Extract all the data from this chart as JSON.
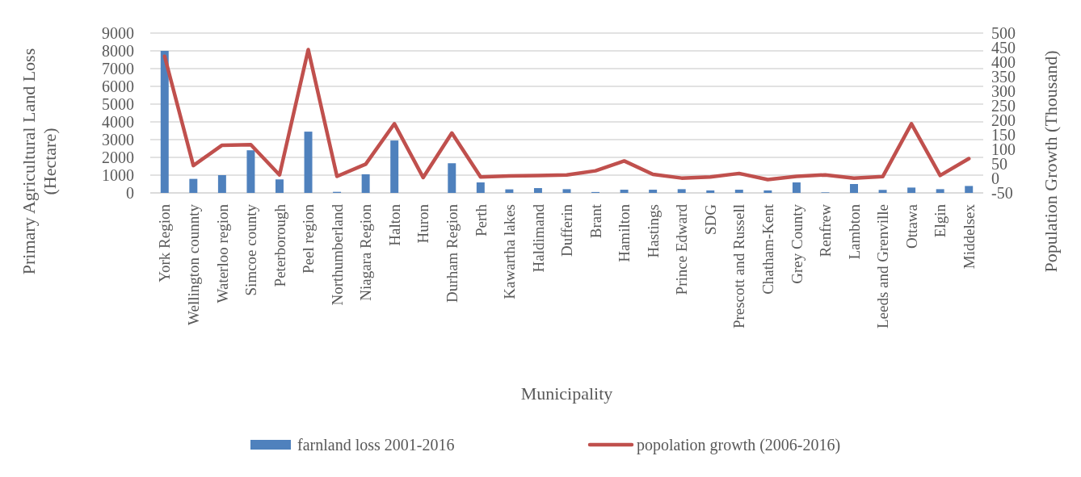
{
  "chart_data": {
    "type": "bar",
    "xlabel": "Municipality",
    "ylabel": "Primary Agricultural Land Loss (Hectare)",
    "y2label": "Population Growth (Thousand)",
    "categories": [
      "York Region",
      "Wellington counnty",
      "Waterloo region",
      "Simcoe county",
      "Peterborough",
      "Peel region",
      "Northumberland",
      "Niagara Region",
      "Halton",
      "Huron",
      "Durham Region",
      "Perth",
      "Kawartha lakes",
      "Haldimand",
      "Dufferin",
      "Brant",
      "Hamilton",
      "Hastings",
      "Prince Edward",
      "SDG",
      "Prescott and Russell",
      "Chatham-Kent",
      "Grey County",
      "Renfrew",
      "Lambton",
      "Leeds and Grenville",
      "Ottawa",
      "Elgin",
      "Middelsex"
    ],
    "series": [
      {
        "name": "farnland loss 2001-2016",
        "color": "#4f81bd",
        "values": [
          8000,
          790,
          1000,
          2400,
          760,
          3450,
          60,
          1050,
          2950,
          0,
          1670,
          590,
          200,
          270,
          210,
          50,
          180,
          180,
          210,
          140,
          180,
          140,
          590,
          30,
          500,
          170,
          300,
          210,
          390
        ]
      },
      {
        "name": "popolation growth (2006-2016)",
        "type": "line",
        "axis": "y2",
        "color": "#c0504d",
        "values": [
          420,
          44,
          114,
          116,
          12,
          443,
          7,
          49,
          188,
          3,
          156,
          5,
          8,
          10,
          12,
          26,
          60,
          14,
          1,
          5,
          17,
          -4,
          7,
          12,
          1,
          6,
          188,
          10,
          68
        ]
      }
    ],
    "ylim": [
      0,
      9000
    ],
    "yticks": [
      0,
      1000,
      2000,
      3000,
      4000,
      5000,
      6000,
      7000,
      8000,
      9000
    ],
    "y2lim": [
      -50,
      500
    ],
    "y2ticks": [
      -50,
      0,
      50,
      100,
      150,
      200,
      250,
      300,
      350,
      400,
      450,
      500
    ],
    "grid": "y",
    "legend": "bottom",
    "marker": "none",
    "line_style": "solid"
  }
}
